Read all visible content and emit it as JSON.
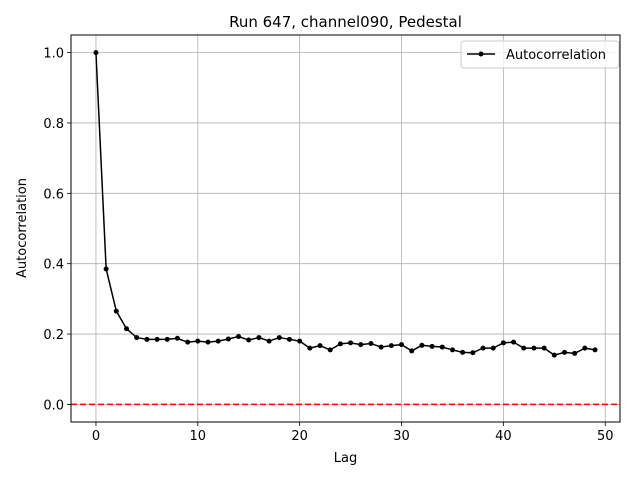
{
  "chart_data": {
    "type": "line",
    "title": "Run 647, channel090, Pedestal",
    "xlabel": "Lag",
    "ylabel": "Autocorrelation",
    "xlim": [
      -2.45,
      51.45
    ],
    "ylim": [
      -0.05,
      1.05
    ],
    "xticks": [
      0,
      10,
      20,
      30,
      40,
      50
    ],
    "yticks": [
      0.0,
      0.2,
      0.4,
      0.6,
      0.8,
      1.0
    ],
    "xtick_labels": [
      "0",
      "10",
      "20",
      "30",
      "40",
      "50"
    ],
    "ytick_labels": [
      "0.0",
      "0.2",
      "0.4",
      "0.6",
      "0.8",
      "1.0"
    ],
    "grid": true,
    "legend_position": "top-right",
    "series": [
      {
        "name": "Autocorrelation",
        "color": "#000000",
        "marker": "dot",
        "x": [
          0,
          1,
          2,
          3,
          4,
          5,
          6,
          7,
          8,
          9,
          10,
          11,
          12,
          13,
          14,
          15,
          16,
          17,
          18,
          19,
          20,
          21,
          22,
          23,
          24,
          25,
          26,
          27,
          28,
          29,
          30,
          31,
          32,
          33,
          34,
          35,
          36,
          37,
          38,
          39,
          40,
          41,
          42,
          43,
          44,
          45,
          46,
          47,
          48,
          49
        ],
        "values": [
          1.0,
          0.385,
          0.265,
          0.215,
          0.19,
          0.185,
          0.185,
          0.185,
          0.188,
          0.177,
          0.18,
          0.177,
          0.18,
          0.186,
          0.193,
          0.183,
          0.19,
          0.18,
          0.19,
          0.185,
          0.18,
          0.16,
          0.167,
          0.155,
          0.172,
          0.175,
          0.17,
          0.173,
          0.163,
          0.167,
          0.17,
          0.152,
          0.168,
          0.165,
          0.163,
          0.155,
          0.148,
          0.147,
          0.16,
          0.16,
          0.175,
          0.177,
          0.16,
          0.16,
          0.16,
          0.14,
          0.148,
          0.145,
          0.16,
          0.155
        ]
      }
    ],
    "reference_line": {
      "y": 0.0,
      "color": "#ff0000",
      "style": "dashed"
    }
  }
}
